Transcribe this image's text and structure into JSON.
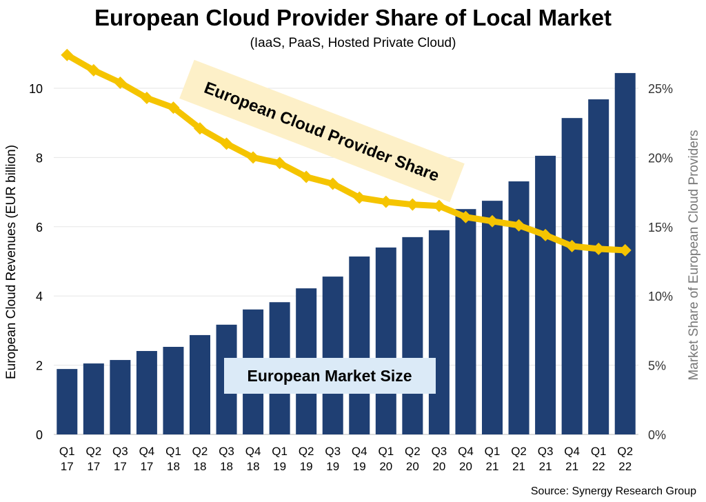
{
  "chart_data": {
    "type": "bar+line",
    "title": "European Cloud Provider Share of Local Market",
    "subtitle": "(IaaS, PaaS, Hosted Private Cloud)",
    "source": "Source: Synergy Research Group",
    "categories": [
      "Q1 17",
      "Q2 17",
      "Q3 17",
      "Q4 17",
      "Q1 18",
      "Q2 18",
      "Q3 18",
      "Q4 18",
      "Q1 19",
      "Q2 19",
      "Q3 19",
      "Q4 19",
      "Q1 20",
      "Q2 20",
      "Q3 20",
      "Q4 20",
      "Q1 21",
      "Q2 21",
      "Q3 21",
      "Q4 21",
      "Q1 22",
      "Q2 22"
    ],
    "ylabel_left": "European Cloud Revenues (EUR billion)",
    "ylabel_right": "Market Share of European Cloud Providers",
    "ylim_left": [
      0,
      11
    ],
    "ylim_right": [
      0,
      27.5
    ],
    "yticks_left": [
      "0",
      "2",
      "4",
      "6",
      "8",
      "10"
    ],
    "yticks_right": [
      "0%",
      "5%",
      "10%",
      "15%",
      "20%",
      "25%"
    ],
    "grid": true,
    "series": [
      {
        "name": "European Market Size",
        "type": "bar",
        "axis": "left",
        "color": "#1f3f73",
        "values": [
          1.89,
          2.05,
          2.15,
          2.41,
          2.53,
          2.87,
          3.17,
          3.61,
          3.82,
          4.22,
          4.56,
          5.14,
          5.4,
          5.7,
          5.9,
          6.51,
          6.75,
          7.31,
          8.05,
          9.14,
          9.68,
          10.44
        ]
      },
      {
        "name": "European Cloud Provider Share",
        "type": "line",
        "axis": "right",
        "color": "#f5c400",
        "values": [
          27.4,
          26.3,
          25.4,
          24.3,
          23.6,
          22.1,
          21.0,
          20.0,
          19.6,
          18.6,
          18.1,
          17.1,
          16.8,
          16.6,
          16.5,
          15.7,
          15.4,
          15.1,
          14.4,
          13.6,
          13.4,
          13.3
        ]
      }
    ]
  }
}
